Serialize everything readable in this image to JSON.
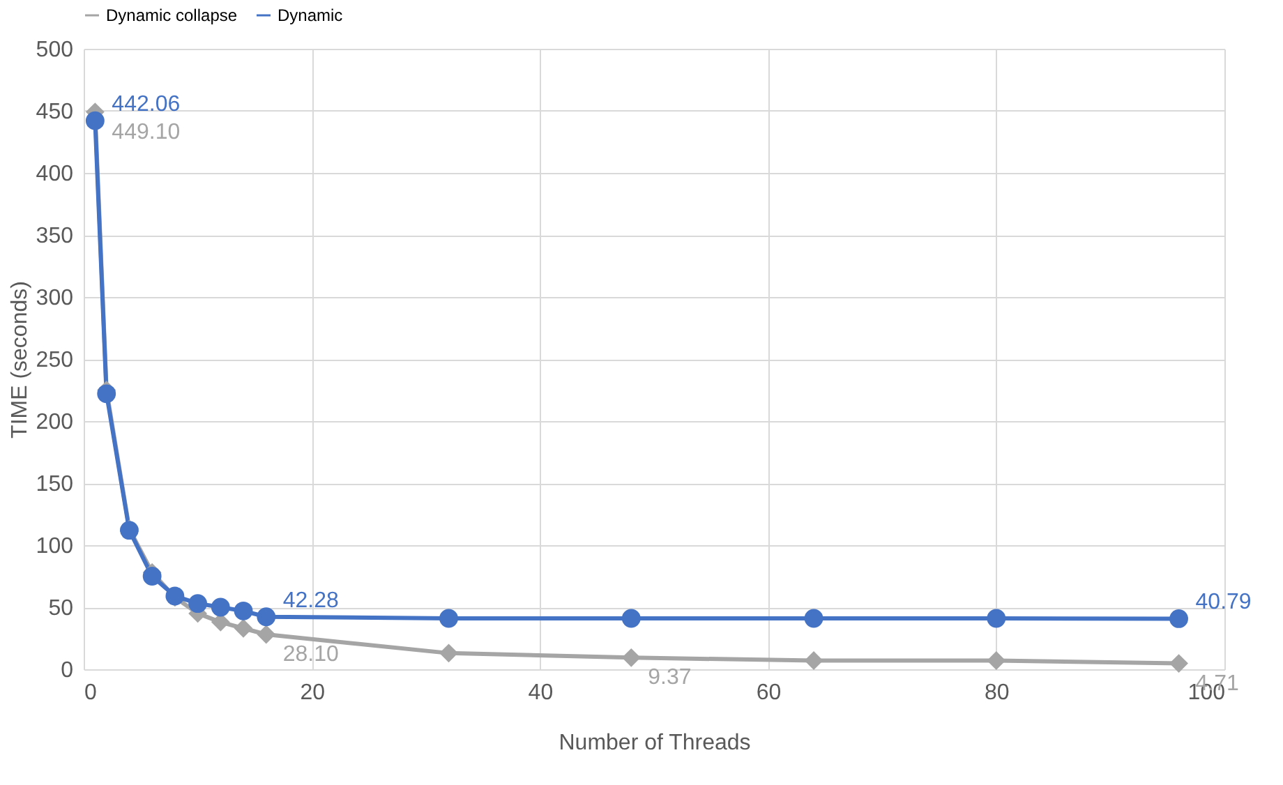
{
  "chart_data": {
    "type": "line",
    "xlabel": "Number of Threads",
    "ylabel": "TIME (seconds)",
    "x": [
      1,
      2,
      4,
      6,
      8,
      10,
      12,
      14,
      16,
      32,
      48,
      64,
      80,
      96
    ],
    "series": [
      {
        "name": "Dynamic collapse",
        "color": "#a5a5a5",
        "marker": "diamond",
        "values": [
          449.1,
          225,
          113,
          78,
          58,
          45,
          38,
          33,
          28.1,
          13,
          9.37,
          7,
          7,
          4.71
        ],
        "value_labels": [
          "449.10",
          null,
          null,
          null,
          null,
          null,
          null,
          null,
          "28.10",
          null,
          "9.37",
          null,
          null,
          "4.71"
        ]
      },
      {
        "name": "Dynamic",
        "color": "#4472c4",
        "marker": "circle",
        "values": [
          442.06,
          222,
          112,
          75,
          59,
          53,
          50,
          47,
          42.28,
          41,
          41,
          41,
          41,
          40.79
        ],
        "value_labels": [
          "442.06",
          null,
          null,
          null,
          null,
          null,
          null,
          null,
          "42.28",
          null,
          null,
          null,
          null,
          "40.79"
        ]
      }
    ],
    "xlim": [
      0,
      100
    ],
    "xticks": [
      0,
      20,
      40,
      60,
      80,
      100
    ],
    "ylim": [
      0,
      500
    ],
    "yticks": [
      0,
      50,
      100,
      150,
      200,
      250,
      300,
      350,
      400,
      450,
      500
    ],
    "grid": true,
    "legend": "top",
    "line_style": "solid"
  }
}
